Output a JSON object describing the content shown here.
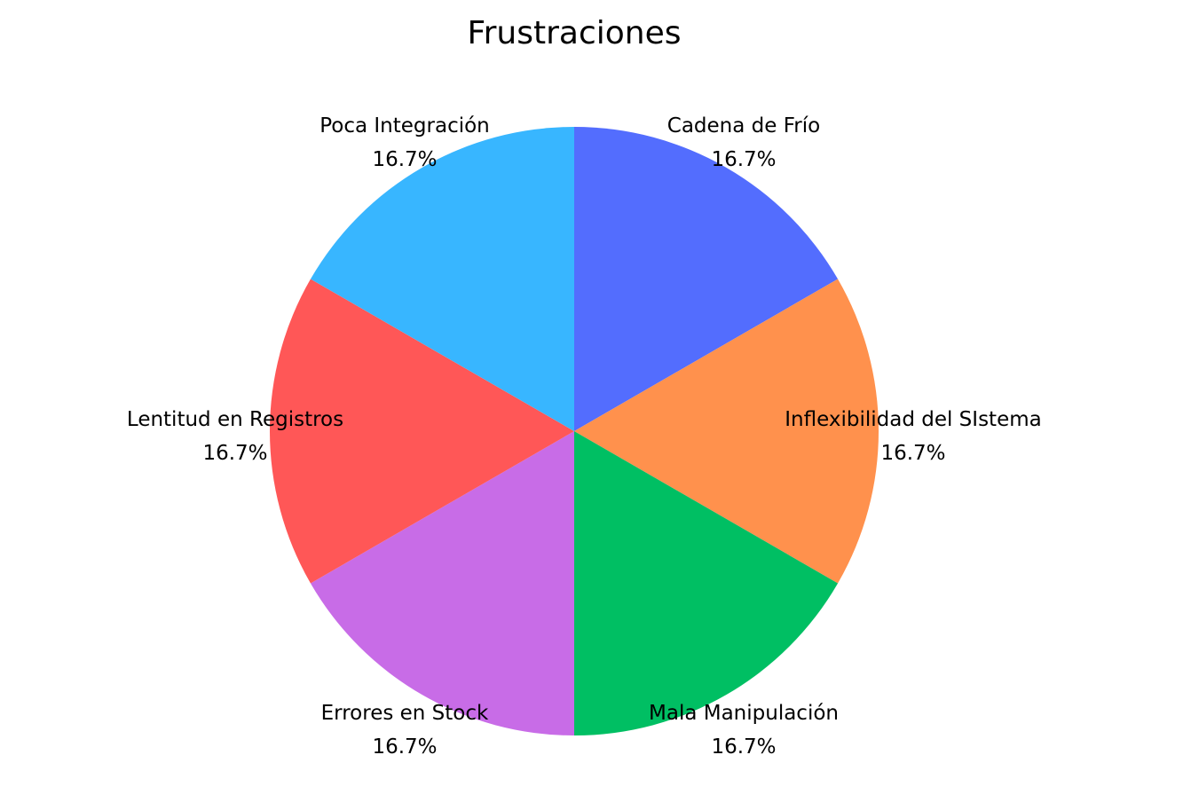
{
  "chart_data": {
    "type": "pie",
    "title": "Frustraciones",
    "slices": [
      {
        "label": "Cadena de Frío",
        "value": 16.7,
        "percent_label": "16.7%",
        "color": "#536DFE"
      },
      {
        "label": "Inflexibilidad del SIstema",
        "value": 16.7,
        "percent_label": "16.7%",
        "color": "#FF914D"
      },
      {
        "label": "Mala Manipulación",
        "value": 16.7,
        "percent_label": "16.7%",
        "color": "#00BF63"
      },
      {
        "label": "Errores en Stock",
        "value": 16.7,
        "percent_label": "16.7%",
        "color": "#C86CE7"
      },
      {
        "label": "Lentitud en Registros",
        "value": 16.7,
        "percent_label": "16.7%",
        "color": "#FF5757"
      },
      {
        "label": "Poca Integración",
        "value": 16.7,
        "percent_label": "16.7%",
        "color": "#38B6FF"
      }
    ],
    "start_angle": "12 o'clock",
    "direction": "clockwise",
    "legend": "none"
  }
}
